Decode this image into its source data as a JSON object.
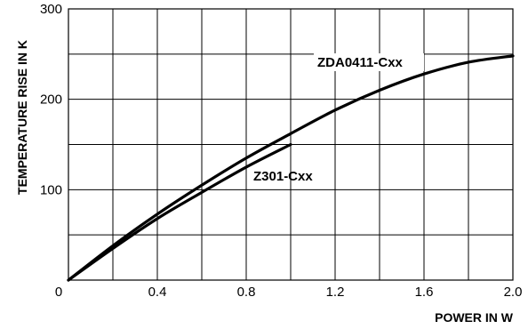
{
  "chart_data": {
    "type": "line",
    "xlabel": "POWER IN W",
    "ylabel": "TEMPERATURE RISE IN K",
    "xlim": [
      0,
      2.0
    ],
    "ylim": [
      0,
      300
    ],
    "x_ticks": [
      "0",
      "0.4",
      "0.8",
      "1.2",
      "1.6",
      "2.0"
    ],
    "y_ticks": [
      "100",
      "200",
      "300"
    ],
    "grid": true,
    "series": [
      {
        "name": "ZDA0411-Cxx",
        "x": [
          0,
          0.2,
          0.4,
          0.6,
          0.8,
          1.0,
          1.2,
          1.4,
          1.6,
          1.8,
          2.0
        ],
        "y": [
          0,
          38,
          73,
          105,
          135,
          162,
          188,
          210,
          228,
          241,
          248
        ]
      },
      {
        "name": "Z301-Cxx",
        "x": [
          0,
          0.2,
          0.4,
          0.6,
          0.8,
          1.0
        ],
        "y": [
          0,
          35,
          68,
          97,
          125,
          150
        ]
      }
    ]
  }
}
